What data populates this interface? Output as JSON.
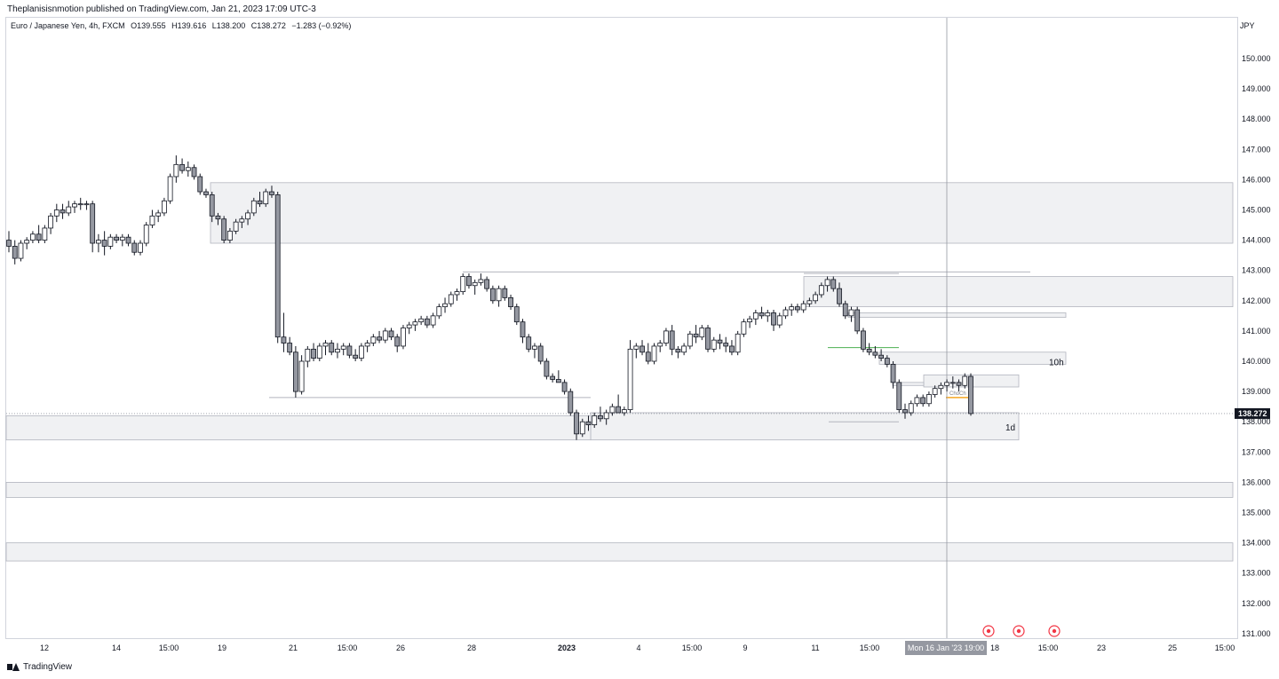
{
  "header": {
    "publish_text": "Theplanisisnmotion published on TradingView.com, Jan 21, 2023 17:09 UTC-3"
  },
  "legend": {
    "symbol": "Euro / Japanese Yen, 4h, FXCM",
    "open": "O139.555",
    "high": "H139.616",
    "low": "L138.200",
    "close": "C138.272",
    "change": "−1.283 (−0.92%)"
  },
  "price_axis": {
    "currency": "JPY"
  },
  "footer": {
    "brand": "TradingView"
  },
  "colors": {
    "bull": "#ffffff",
    "bear": "#9598a1",
    "outline": "#131722",
    "zone": "#f0f1f3",
    "zone_border": "#b2b5be",
    "choch_line": "#f5a623",
    "green_line": "#4caf50",
    "marker": "#f23645"
  },
  "chart_data": {
    "type": "candlestick",
    "symbol": "Euro / Japanese Yen",
    "timeframe": "4h",
    "ylim": [
      130.8,
      150.6
    ],
    "y_ticks": [
      "150.000",
      "149.000",
      "148.000",
      "147.000",
      "146.000",
      "145.000",
      "144.000",
      "143.000",
      "142.000",
      "141.000",
      "140.000",
      "139.000",
      "138.000",
      "137.000",
      "136.000",
      "135.000",
      "134.000",
      "133.000",
      "132.000",
      "131.000"
    ],
    "x_ticks": [
      "12",
      "14",
      "15:00",
      "19",
      "21",
      "15:00",
      "26",
      "28",
      "2023",
      "4",
      "15:00",
      "9",
      "11",
      "15:00",
      "18",
      "15:00",
      "23",
      "25",
      "15:00"
    ],
    "last_price": "138.272",
    "crosshair_label": "Mon 16 Jan '23   19:00",
    "zone_labels": [
      "10h",
      "1d",
      "ChoCh"
    ],
    "ohlc": [
      [
        144.0,
        144.3,
        143.6,
        143.8
      ],
      [
        143.8,
        144.0,
        143.2,
        143.4
      ],
      [
        143.4,
        144.0,
        143.3,
        143.9
      ],
      [
        143.9,
        144.1,
        143.7,
        144.0
      ],
      [
        144.0,
        144.3,
        143.9,
        144.2
      ],
      [
        144.2,
        144.5,
        143.9,
        144.0
      ],
      [
        144.0,
        144.5,
        143.9,
        144.4
      ],
      [
        144.4,
        144.9,
        144.2,
        144.8
      ],
      [
        144.8,
        145.2,
        144.6,
        145.0
      ],
      [
        145.0,
        145.2,
        144.7,
        144.9
      ],
      [
        144.9,
        145.3,
        144.8,
        145.1
      ],
      [
        145.1,
        145.3,
        144.9,
        145.2
      ],
      [
        145.2,
        145.4,
        145.0,
        145.2
      ],
      [
        145.2,
        145.3,
        145.0,
        145.2
      ],
      [
        145.2,
        145.3,
        143.6,
        143.9
      ],
      [
        143.9,
        144.2,
        143.6,
        144.0
      ],
      [
        144.0,
        144.3,
        143.5,
        143.8
      ],
      [
        143.8,
        144.2,
        143.7,
        144.1
      ],
      [
        144.1,
        144.2,
        143.9,
        144.0
      ],
      [
        144.0,
        144.2,
        143.8,
        144.1
      ],
      [
        144.1,
        144.2,
        143.8,
        143.9
      ],
      [
        143.9,
        144.0,
        143.5,
        143.6
      ],
      [
        143.6,
        144.0,
        143.5,
        143.9
      ],
      [
        143.9,
        144.6,
        143.8,
        144.5
      ],
      [
        144.5,
        145.0,
        144.4,
        144.8
      ],
      [
        144.8,
        145.0,
        144.6,
        144.9
      ],
      [
        144.9,
        145.4,
        144.8,
        145.3
      ],
      [
        145.3,
        146.2,
        145.2,
        146.1
      ],
      [
        146.1,
        146.8,
        145.9,
        146.5
      ],
      [
        146.5,
        146.7,
        146.2,
        146.3
      ],
      [
        146.3,
        146.6,
        146.1,
        146.4
      ],
      [
        146.4,
        146.5,
        146.0,
        146.1
      ],
      [
        146.1,
        146.2,
        145.5,
        145.6
      ],
      [
        145.6,
        145.7,
        145.4,
        145.5
      ],
      [
        145.5,
        145.6,
        144.6,
        144.8
      ],
      [
        144.8,
        144.9,
        144.5,
        144.7
      ],
      [
        144.7,
        144.8,
        143.9,
        144.0
      ],
      [
        144.0,
        144.4,
        143.9,
        144.3
      ],
      [
        144.3,
        144.7,
        144.2,
        144.6
      ],
      [
        144.6,
        144.8,
        144.4,
        144.7
      ],
      [
        144.7,
        145.0,
        144.5,
        144.9
      ],
      [
        144.9,
        145.4,
        144.8,
        145.3
      ],
      [
        145.3,
        145.6,
        145.1,
        145.2
      ],
      [
        145.2,
        145.7,
        145.1,
        145.6
      ],
      [
        145.6,
        145.8,
        145.4,
        145.5
      ],
      [
        145.5,
        145.6,
        140.6,
        140.8
      ],
      [
        140.8,
        141.6,
        140.3,
        140.6
      ],
      [
        140.6,
        140.8,
        140.2,
        140.3
      ],
      [
        140.3,
        140.5,
        138.8,
        139.0
      ],
      [
        139.0,
        140.2,
        138.9,
        140.0
      ],
      [
        140.0,
        140.5,
        139.8,
        140.4
      ],
      [
        140.4,
        140.6,
        140.0,
        140.1
      ],
      [
        140.1,
        140.6,
        140.0,
        140.5
      ],
      [
        140.5,
        140.7,
        140.2,
        140.6
      ],
      [
        140.6,
        140.7,
        140.2,
        140.3
      ],
      [
        140.3,
        140.6,
        140.1,
        140.4
      ],
      [
        140.4,
        140.6,
        140.2,
        140.5
      ],
      [
        140.5,
        140.6,
        140.1,
        140.2
      ],
      [
        140.2,
        140.4,
        140.0,
        140.1
      ],
      [
        140.1,
        140.6,
        140.0,
        140.5
      ],
      [
        140.5,
        140.7,
        140.3,
        140.6
      ],
      [
        140.6,
        140.9,
        140.5,
        140.8
      ],
      [
        140.8,
        141.0,
        140.6,
        140.7
      ],
      [
        140.7,
        141.1,
        140.6,
        141.0
      ],
      [
        141.0,
        141.1,
        140.7,
        140.8
      ],
      [
        140.8,
        140.9,
        140.3,
        140.5
      ],
      [
        140.5,
        141.2,
        140.4,
        141.1
      ],
      [
        141.1,
        141.3,
        140.9,
        141.2
      ],
      [
        141.2,
        141.4,
        141.0,
        141.3
      ],
      [
        141.3,
        141.5,
        141.2,
        141.4
      ],
      [
        141.4,
        141.5,
        141.1,
        141.2
      ],
      [
        141.2,
        141.6,
        141.1,
        141.5
      ],
      [
        141.5,
        141.9,
        141.4,
        141.8
      ],
      [
        141.8,
        142.1,
        141.6,
        141.9
      ],
      [
        141.9,
        142.3,
        141.8,
        142.2
      ],
      [
        142.2,
        142.4,
        142.0,
        142.3
      ],
      [
        142.3,
        142.9,
        142.2,
        142.8
      ],
      [
        142.8,
        142.9,
        142.4,
        142.5
      ],
      [
        142.5,
        142.7,
        142.2,
        142.6
      ],
      [
        142.6,
        142.9,
        142.5,
        142.7
      ],
      [
        142.7,
        142.8,
        142.3,
        142.4
      ],
      [
        142.4,
        142.5,
        141.9,
        142.0
      ],
      [
        142.0,
        142.5,
        141.8,
        142.4
      ],
      [
        142.4,
        142.5,
        142.0,
        142.1
      ],
      [
        142.1,
        142.2,
        141.7,
        141.8
      ],
      [
        141.8,
        141.9,
        141.2,
        141.3
      ],
      [
        141.3,
        141.4,
        140.6,
        140.8
      ],
      [
        140.8,
        140.9,
        140.3,
        140.4
      ],
      [
        140.4,
        140.6,
        140.1,
        140.5
      ],
      [
        140.5,
        140.6,
        139.9,
        140.0
      ],
      [
        140.0,
        140.1,
        139.4,
        139.5
      ],
      [
        139.5,
        139.6,
        139.3,
        139.4
      ],
      [
        139.4,
        139.7,
        139.3,
        139.3
      ],
      [
        139.3,
        139.4,
        138.9,
        139.0
      ],
      [
        139.0,
        139.1,
        138.2,
        138.3
      ],
      [
        138.3,
        138.4,
        137.4,
        137.6
      ],
      [
        137.6,
        138.1,
        137.5,
        138.0
      ],
      [
        138.0,
        138.2,
        137.7,
        137.9
      ],
      [
        137.9,
        138.3,
        137.8,
        138.2
      ],
      [
        138.2,
        138.5,
        138.0,
        138.1
      ],
      [
        138.1,
        138.4,
        137.9,
        138.3
      ],
      [
        138.3,
        138.6,
        138.2,
        138.5
      ],
      [
        138.5,
        138.9,
        138.3,
        138.3
      ],
      [
        138.3,
        138.5,
        138.2,
        138.4
      ],
      [
        138.4,
        140.7,
        138.3,
        140.4
      ],
      [
        140.4,
        140.6,
        140.1,
        140.5
      ],
      [
        140.5,
        140.7,
        140.2,
        140.3
      ],
      [
        140.3,
        140.6,
        139.9,
        140.0
      ],
      [
        140.0,
        140.6,
        139.9,
        140.5
      ],
      [
        140.5,
        140.7,
        140.3,
        140.6
      ],
      [
        140.6,
        141.1,
        140.5,
        141.0
      ],
      [
        141.0,
        141.2,
        140.2,
        140.4
      ],
      [
        140.4,
        140.5,
        140.1,
        140.3
      ],
      [
        140.3,
        140.6,
        140.2,
        140.5
      ],
      [
        140.5,
        141.0,
        140.4,
        140.9
      ],
      [
        140.9,
        141.2,
        140.6,
        140.8
      ],
      [
        140.8,
        141.2,
        140.7,
        141.1
      ],
      [
        141.1,
        141.2,
        140.3,
        140.4
      ],
      [
        140.4,
        140.8,
        140.3,
        140.7
      ],
      [
        140.7,
        140.9,
        140.4,
        140.6
      ],
      [
        140.6,
        140.8,
        140.3,
        140.5
      ],
      [
        140.5,
        140.7,
        140.2,
        140.3
      ],
      [
        140.3,
        141.0,
        140.2,
        140.9
      ],
      [
        140.9,
        141.4,
        140.8,
        141.3
      ],
      [
        141.3,
        141.5,
        141.1,
        141.4
      ],
      [
        141.4,
        141.7,
        141.2,
        141.6
      ],
      [
        141.6,
        141.8,
        141.4,
        141.5
      ],
      [
        141.5,
        141.7,
        141.3,
        141.6
      ],
      [
        141.6,
        141.7,
        141.0,
        141.2
      ],
      [
        141.2,
        141.6,
        141.1,
        141.5
      ],
      [
        141.5,
        141.8,
        141.4,
        141.7
      ],
      [
        141.7,
        141.9,
        141.5,
        141.8
      ],
      [
        141.8,
        141.9,
        141.6,
        141.7
      ],
      [
        141.7,
        142.0,
        141.6,
        141.9
      ],
      [
        141.9,
        142.1,
        141.8,
        142.0
      ],
      [
        142.0,
        142.3,
        141.9,
        142.2
      ],
      [
        142.2,
        142.6,
        142.1,
        142.5
      ],
      [
        142.5,
        142.8,
        142.3,
        142.7
      ],
      [
        142.7,
        142.8,
        142.3,
        142.4
      ],
      [
        142.4,
        142.6,
        141.8,
        141.9
      ],
      [
        141.9,
        142.0,
        141.4,
        141.5
      ],
      [
        141.5,
        141.8,
        141.3,
        141.7
      ],
      [
        141.7,
        141.8,
        140.9,
        141.0
      ],
      [
        141.0,
        141.1,
        140.3,
        140.4
      ],
      [
        140.4,
        140.6,
        140.2,
        140.3
      ],
      [
        140.3,
        140.5,
        140.1,
        140.2
      ],
      [
        140.2,
        140.4,
        140.0,
        140.1
      ],
      [
        140.1,
        140.2,
        139.8,
        139.9
      ],
      [
        139.9,
        140.0,
        139.1,
        139.3
      ],
      [
        139.3,
        139.4,
        138.3,
        138.4
      ],
      [
        138.4,
        138.6,
        138.1,
        138.3
      ],
      [
        138.3,
        138.7,
        138.2,
        138.6
      ],
      [
        138.6,
        138.9,
        138.5,
        138.8
      ],
      [
        138.8,
        138.9,
        138.5,
        138.6
      ],
      [
        138.6,
        139.0,
        138.5,
        138.9
      ],
      [
        138.9,
        139.2,
        138.8,
        139.1
      ],
      [
        139.1,
        139.3,
        138.9,
        139.2
      ],
      [
        139.2,
        139.4,
        139.0,
        139.3
      ],
      [
        139.3,
        139.5,
        139.1,
        139.3
      ],
      [
        139.3,
        139.4,
        139.0,
        139.2
      ],
      [
        139.2,
        139.6,
        139.1,
        139.5
      ],
      [
        139.5,
        139.6,
        138.2,
        138.272
      ]
    ]
  }
}
